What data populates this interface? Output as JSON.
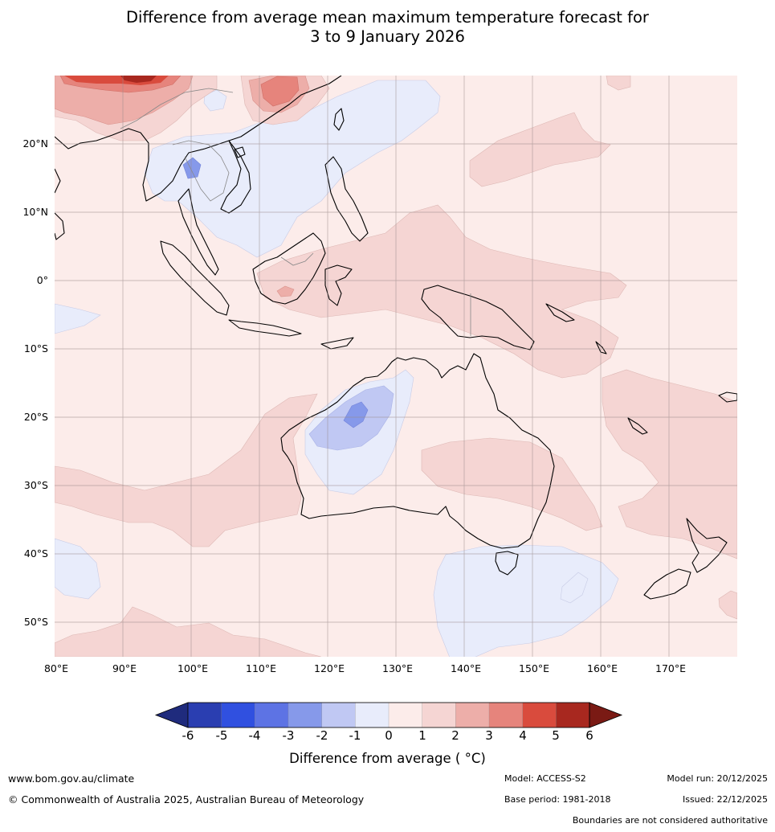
{
  "title": {
    "line1": "Difference from average mean maximum temperature forecast for",
    "line2": "3 to 9 January 2026"
  },
  "map": {
    "lat_labels": [
      "20°N",
      "10°N",
      "0°",
      "10°S",
      "20°S",
      "30°S",
      "40°S",
      "50°S"
    ],
    "lon_labels": [
      "80°E",
      "90°E",
      "100°E",
      "110°E",
      "120°E",
      "130°E",
      "140°E",
      "150°E",
      "160°E",
      "170°E"
    ],
    "lon_range": [
      80,
      180
    ],
    "lat_range": [
      -55,
      30
    ]
  },
  "colorbar": {
    "ticks": [
      "-6",
      "-5",
      "-4",
      "-3",
      "-2",
      "-1",
      "0",
      "1",
      "2",
      "3",
      "4",
      "5",
      "6"
    ],
    "colors": [
      "#1f2b7d",
      "#2a3eb1",
      "#3050e0",
      "#5d73e4",
      "#8699ea",
      "#c0c8f3",
      "#e8ecfb",
      "#fcecea",
      "#f5d5d3",
      "#edaea9",
      "#e6847c",
      "#d94b3d",
      "#a8281f",
      "#7a1a14"
    ],
    "label": "Difference from average ( °C)"
  },
  "footer": {
    "website": "www.bom.gov.au/climate",
    "copyright": "© Commonwealth of Australia 2025, Australian Bureau of Meteorology",
    "model": "Model: ACCESS-S2",
    "model_run": "Model run: 20/12/2025",
    "base_period": "Base period: 1981-2018",
    "issued": "Issued: 22/12/2025",
    "disclaimer": "Boundaries are not considered authoritative"
  }
}
